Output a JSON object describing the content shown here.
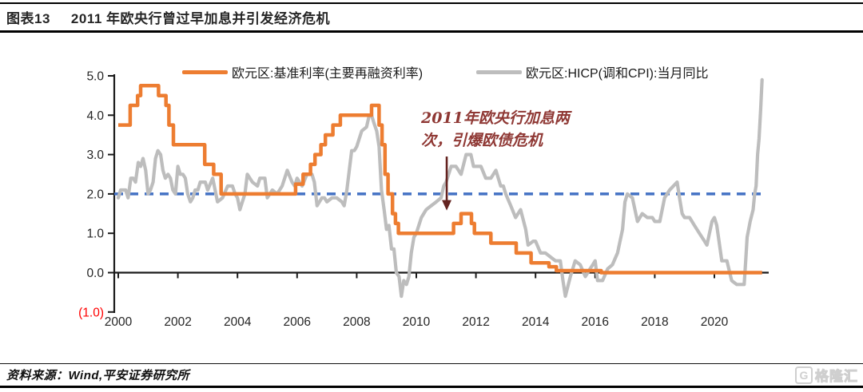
{
  "header": {
    "tag": "图表13",
    "title": "2011 年欧央行曾过早加息并引发经济危机"
  },
  "annotation": {
    "line1": "2011年欧央行加息两",
    "line2": "次，引爆欧债危机",
    "color": "#8F3834",
    "arrow": {
      "t": 2011.02,
      "from_value": 2.95,
      "to_value": 1.58,
      "color": "#642320"
    }
  },
  "footer": {
    "source": "资料来源：Wind,平安证券研究所",
    "watermark": "格隆汇",
    "watermark_icon": "G"
  },
  "chart_data": {
    "type": "line",
    "title": "2011 年欧央行曾过早加息并引发经济危机",
    "xlabel": "",
    "ylabel": "",
    "xlim": [
      2000,
      2021.95
    ],
    "ylim": [
      -1,
      5
    ],
    "grid": false,
    "legend_position": "top",
    "x_ticks": [
      "2000",
      "2002",
      "2004",
      "2006",
      "2008",
      "2010",
      "2012",
      "2014",
      "2016",
      "2018",
      "2020"
    ],
    "y_ticks": [
      {
        "label": "5.0",
        "value": 5,
        "color": "#262626"
      },
      {
        "label": "4.0",
        "value": 4,
        "color": "#262626"
      },
      {
        "label": "3.0",
        "value": 3,
        "color": "#262626"
      },
      {
        "label": "2.0",
        "value": 2,
        "color": "#262626"
      },
      {
        "label": "1.0",
        "value": 1,
        "color": "#262626"
      },
      {
        "label": "0.0",
        "value": 0,
        "color": "#262626"
      },
      {
        "label": "(1.0)",
        "value": -1,
        "color": "#FF0000"
      }
    ],
    "target_line": {
      "value": 2.0,
      "color": "#4472C4",
      "style": "dashed"
    },
    "series": [
      {
        "name": "欧元区:基准利率(主要再融资利率)",
        "color": "#ED7D31",
        "type": "step",
        "points": [
          [
            2000.0,
            3.75
          ],
          [
            2000.4,
            4.25
          ],
          [
            2000.65,
            4.5
          ],
          [
            2000.75,
            4.75
          ],
          [
            2001.35,
            4.5
          ],
          [
            2001.6,
            4.25
          ],
          [
            2001.7,
            3.75
          ],
          [
            2001.85,
            3.25
          ],
          [
            2002.9,
            2.75
          ],
          [
            2003.2,
            2.5
          ],
          [
            2003.45,
            2.0
          ],
          [
            2005.95,
            2.25
          ],
          [
            2006.2,
            2.5
          ],
          [
            2006.45,
            2.75
          ],
          [
            2006.6,
            3.0
          ],
          [
            2006.8,
            3.25
          ],
          [
            2006.95,
            3.5
          ],
          [
            2007.2,
            3.75
          ],
          [
            2007.45,
            4.0
          ],
          [
            2008.5,
            4.25
          ],
          [
            2008.75,
            3.75
          ],
          [
            2008.85,
            3.25
          ],
          [
            2008.95,
            2.5
          ],
          [
            2009.05,
            2.0
          ],
          [
            2009.2,
            1.5
          ],
          [
            2009.3,
            1.25
          ],
          [
            2009.4,
            1.0
          ],
          [
            2011.25,
            1.25
          ],
          [
            2011.5,
            1.5
          ],
          [
            2011.85,
            1.25
          ],
          [
            2011.95,
            1.0
          ],
          [
            2012.5,
            0.75
          ],
          [
            2013.35,
            0.5
          ],
          [
            2013.85,
            0.25
          ],
          [
            2014.45,
            0.15
          ],
          [
            2014.7,
            0.05
          ],
          [
            2016.2,
            0.0
          ],
          [
            2021.6,
            0.0
          ]
        ]
      },
      {
        "name": "欧元区:HICP(调和CPI):当月同比",
        "color": "#BDBDBD",
        "type": "line",
        "points": [
          [
            2000.0,
            1.9
          ],
          [
            2000.08,
            2.1
          ],
          [
            2000.17,
            2.1
          ],
          [
            2000.25,
            2.1
          ],
          [
            2000.33,
            1.9
          ],
          [
            2000.42,
            2.4
          ],
          [
            2000.5,
            2.4
          ],
          [
            2000.58,
            2.3
          ],
          [
            2000.67,
            2.8
          ],
          [
            2000.75,
            2.7
          ],
          [
            2000.83,
            2.9
          ],
          [
            2000.92,
            2.6
          ],
          [
            2001.0,
            2.0
          ],
          [
            2001.08,
            2.1
          ],
          [
            2001.17,
            2.3
          ],
          [
            2001.25,
            2.9
          ],
          [
            2001.33,
            3.1
          ],
          [
            2001.42,
            3.0
          ],
          [
            2001.5,
            2.6
          ],
          [
            2001.58,
            2.4
          ],
          [
            2001.67,
            2.5
          ],
          [
            2001.75,
            2.4
          ],
          [
            2001.83,
            2.1
          ],
          [
            2001.92,
            2.0
          ],
          [
            2002.0,
            2.7
          ],
          [
            2002.08,
            2.5
          ],
          [
            2002.17,
            2.5
          ],
          [
            2002.25,
            2.4
          ],
          [
            2002.33,
            2.0
          ],
          [
            2002.42,
            1.8
          ],
          [
            2002.5,
            1.9
          ],
          [
            2002.58,
            2.1
          ],
          [
            2002.67,
            2.1
          ],
          [
            2002.75,
            2.3
          ],
          [
            2002.83,
            2.3
          ],
          [
            2002.92,
            2.3
          ],
          [
            2003.0,
            2.1
          ],
          [
            2003.17,
            2.4
          ],
          [
            2003.33,
            1.8
          ],
          [
            2003.5,
            1.9
          ],
          [
            2003.67,
            2.2
          ],
          [
            2003.83,
            2.2
          ],
          [
            2003.92,
            2.0
          ],
          [
            2004.0,
            1.9
          ],
          [
            2004.08,
            1.6
          ],
          [
            2004.25,
            2.0
          ],
          [
            2004.33,
            2.5
          ],
          [
            2004.5,
            2.3
          ],
          [
            2004.67,
            2.2
          ],
          [
            2004.75,
            2.4
          ],
          [
            2004.92,
            2.4
          ],
          [
            2005.0,
            1.9
          ],
          [
            2005.17,
            2.1
          ],
          [
            2005.33,
            2.0
          ],
          [
            2005.5,
            2.2
          ],
          [
            2005.67,
            2.6
          ],
          [
            2005.83,
            2.3
          ],
          [
            2005.92,
            2.2
          ],
          [
            2006.0,
            2.4
          ],
          [
            2006.17,
            2.2
          ],
          [
            2006.33,
            2.5
          ],
          [
            2006.5,
            2.5
          ],
          [
            2006.58,
            2.3
          ],
          [
            2006.67,
            1.7
          ],
          [
            2006.83,
            1.9
          ],
          [
            2006.92,
            1.9
          ],
          [
            2007.0,
            1.8
          ],
          [
            2007.17,
            1.9
          ],
          [
            2007.33,
            1.9
          ],
          [
            2007.5,
            1.8
          ],
          [
            2007.58,
            1.7
          ],
          [
            2007.67,
            2.1
          ],
          [
            2007.75,
            2.6
          ],
          [
            2007.83,
            3.1
          ],
          [
            2007.92,
            3.1
          ],
          [
            2008.0,
            3.2
          ],
          [
            2008.17,
            3.6
          ],
          [
            2008.33,
            3.7
          ],
          [
            2008.42,
            4.0
          ],
          [
            2008.5,
            4.0
          ],
          [
            2008.58,
            3.8
          ],
          [
            2008.67,
            3.6
          ],
          [
            2008.75,
            3.2
          ],
          [
            2008.83,
            2.1
          ],
          [
            2008.92,
            1.6
          ],
          [
            2009.0,
            1.1
          ],
          [
            2009.08,
            1.2
          ],
          [
            2009.17,
            0.6
          ],
          [
            2009.25,
            0.6
          ],
          [
            2009.33,
            0.0
          ],
          [
            2009.42,
            -0.1
          ],
          [
            2009.5,
            -0.6
          ],
          [
            2009.58,
            -0.2
          ],
          [
            2009.67,
            -0.3
          ],
          [
            2009.75,
            -0.1
          ],
          [
            2009.83,
            0.5
          ],
          [
            2009.92,
            0.9
          ],
          [
            2010.0,
            1.0
          ],
          [
            2010.17,
            1.4
          ],
          [
            2010.33,
            1.6
          ],
          [
            2010.5,
            1.7
          ],
          [
            2010.67,
            1.8
          ],
          [
            2010.83,
            1.9
          ],
          [
            2010.92,
            2.2
          ],
          [
            2011.0,
            2.3
          ],
          [
            2011.17,
            2.7
          ],
          [
            2011.33,
            2.7
          ],
          [
            2011.5,
            2.5
          ],
          [
            2011.67,
            3.0
          ],
          [
            2011.75,
            3.0
          ],
          [
            2011.83,
            3.0
          ],
          [
            2011.92,
            2.7
          ],
          [
            2012.0,
            2.7
          ],
          [
            2012.17,
            2.7
          ],
          [
            2012.33,
            2.4
          ],
          [
            2012.5,
            2.4
          ],
          [
            2012.67,
            2.6
          ],
          [
            2012.83,
            2.2
          ],
          [
            2012.92,
            2.2
          ],
          [
            2013.0,
            2.0
          ],
          [
            2013.17,
            1.7
          ],
          [
            2013.33,
            1.4
          ],
          [
            2013.5,
            1.6
          ],
          [
            2013.67,
            1.1
          ],
          [
            2013.75,
            0.7
          ],
          [
            2013.92,
            0.8
          ],
          [
            2014.0,
            0.8
          ],
          [
            2014.17,
            0.5
          ],
          [
            2014.33,
            0.5
          ],
          [
            2014.5,
            0.4
          ],
          [
            2014.67,
            0.3
          ],
          [
            2014.83,
            0.3
          ],
          [
            2014.92,
            -0.2
          ],
          [
            2015.0,
            -0.6
          ],
          [
            2015.17,
            -0.1
          ],
          [
            2015.33,
            0.3
          ],
          [
            2015.5,
            0.2
          ],
          [
            2015.67,
            -0.1
          ],
          [
            2015.83,
            0.1
          ],
          [
            2015.92,
            0.2
          ],
          [
            2016.0,
            0.3
          ],
          [
            2016.08,
            -0.2
          ],
          [
            2016.25,
            -0.2
          ],
          [
            2016.42,
            0.1
          ],
          [
            2016.58,
            0.2
          ],
          [
            2016.75,
            0.5
          ],
          [
            2016.92,
            1.1
          ],
          [
            2017.0,
            1.8
          ],
          [
            2017.08,
            2.0
          ],
          [
            2017.25,
            1.9
          ],
          [
            2017.42,
            1.3
          ],
          [
            2017.58,
            1.5
          ],
          [
            2017.75,
            1.4
          ],
          [
            2017.92,
            1.4
          ],
          [
            2018.0,
            1.3
          ],
          [
            2018.17,
            1.3
          ],
          [
            2018.33,
            1.9
          ],
          [
            2018.5,
            2.1
          ],
          [
            2018.75,
            2.3
          ],
          [
            2018.83,
            1.9
          ],
          [
            2018.92,
            1.5
          ],
          [
            2019.0,
            1.4
          ],
          [
            2019.17,
            1.4
          ],
          [
            2019.33,
            1.2
          ],
          [
            2019.5,
            1.0
          ],
          [
            2019.67,
            0.8
          ],
          [
            2019.75,
            0.7
          ],
          [
            2019.92,
            1.3
          ],
          [
            2020.0,
            1.4
          ],
          [
            2020.08,
            1.2
          ],
          [
            2020.25,
            0.3
          ],
          [
            2020.42,
            0.3
          ],
          [
            2020.58,
            -0.2
          ],
          [
            2020.75,
            -0.3
          ],
          [
            2020.92,
            -0.3
          ],
          [
            2021.0,
            -0.3
          ],
          [
            2021.05,
            0.3
          ],
          [
            2021.1,
            0.9
          ],
          [
            2021.2,
            1.3
          ],
          [
            2021.3,
            1.6
          ],
          [
            2021.35,
            2.0
          ],
          [
            2021.4,
            2.2
          ],
          [
            2021.45,
            3.0
          ],
          [
            2021.5,
            3.4
          ],
          [
            2021.55,
            4.1
          ],
          [
            2021.6,
            4.9
          ]
        ]
      }
    ]
  }
}
